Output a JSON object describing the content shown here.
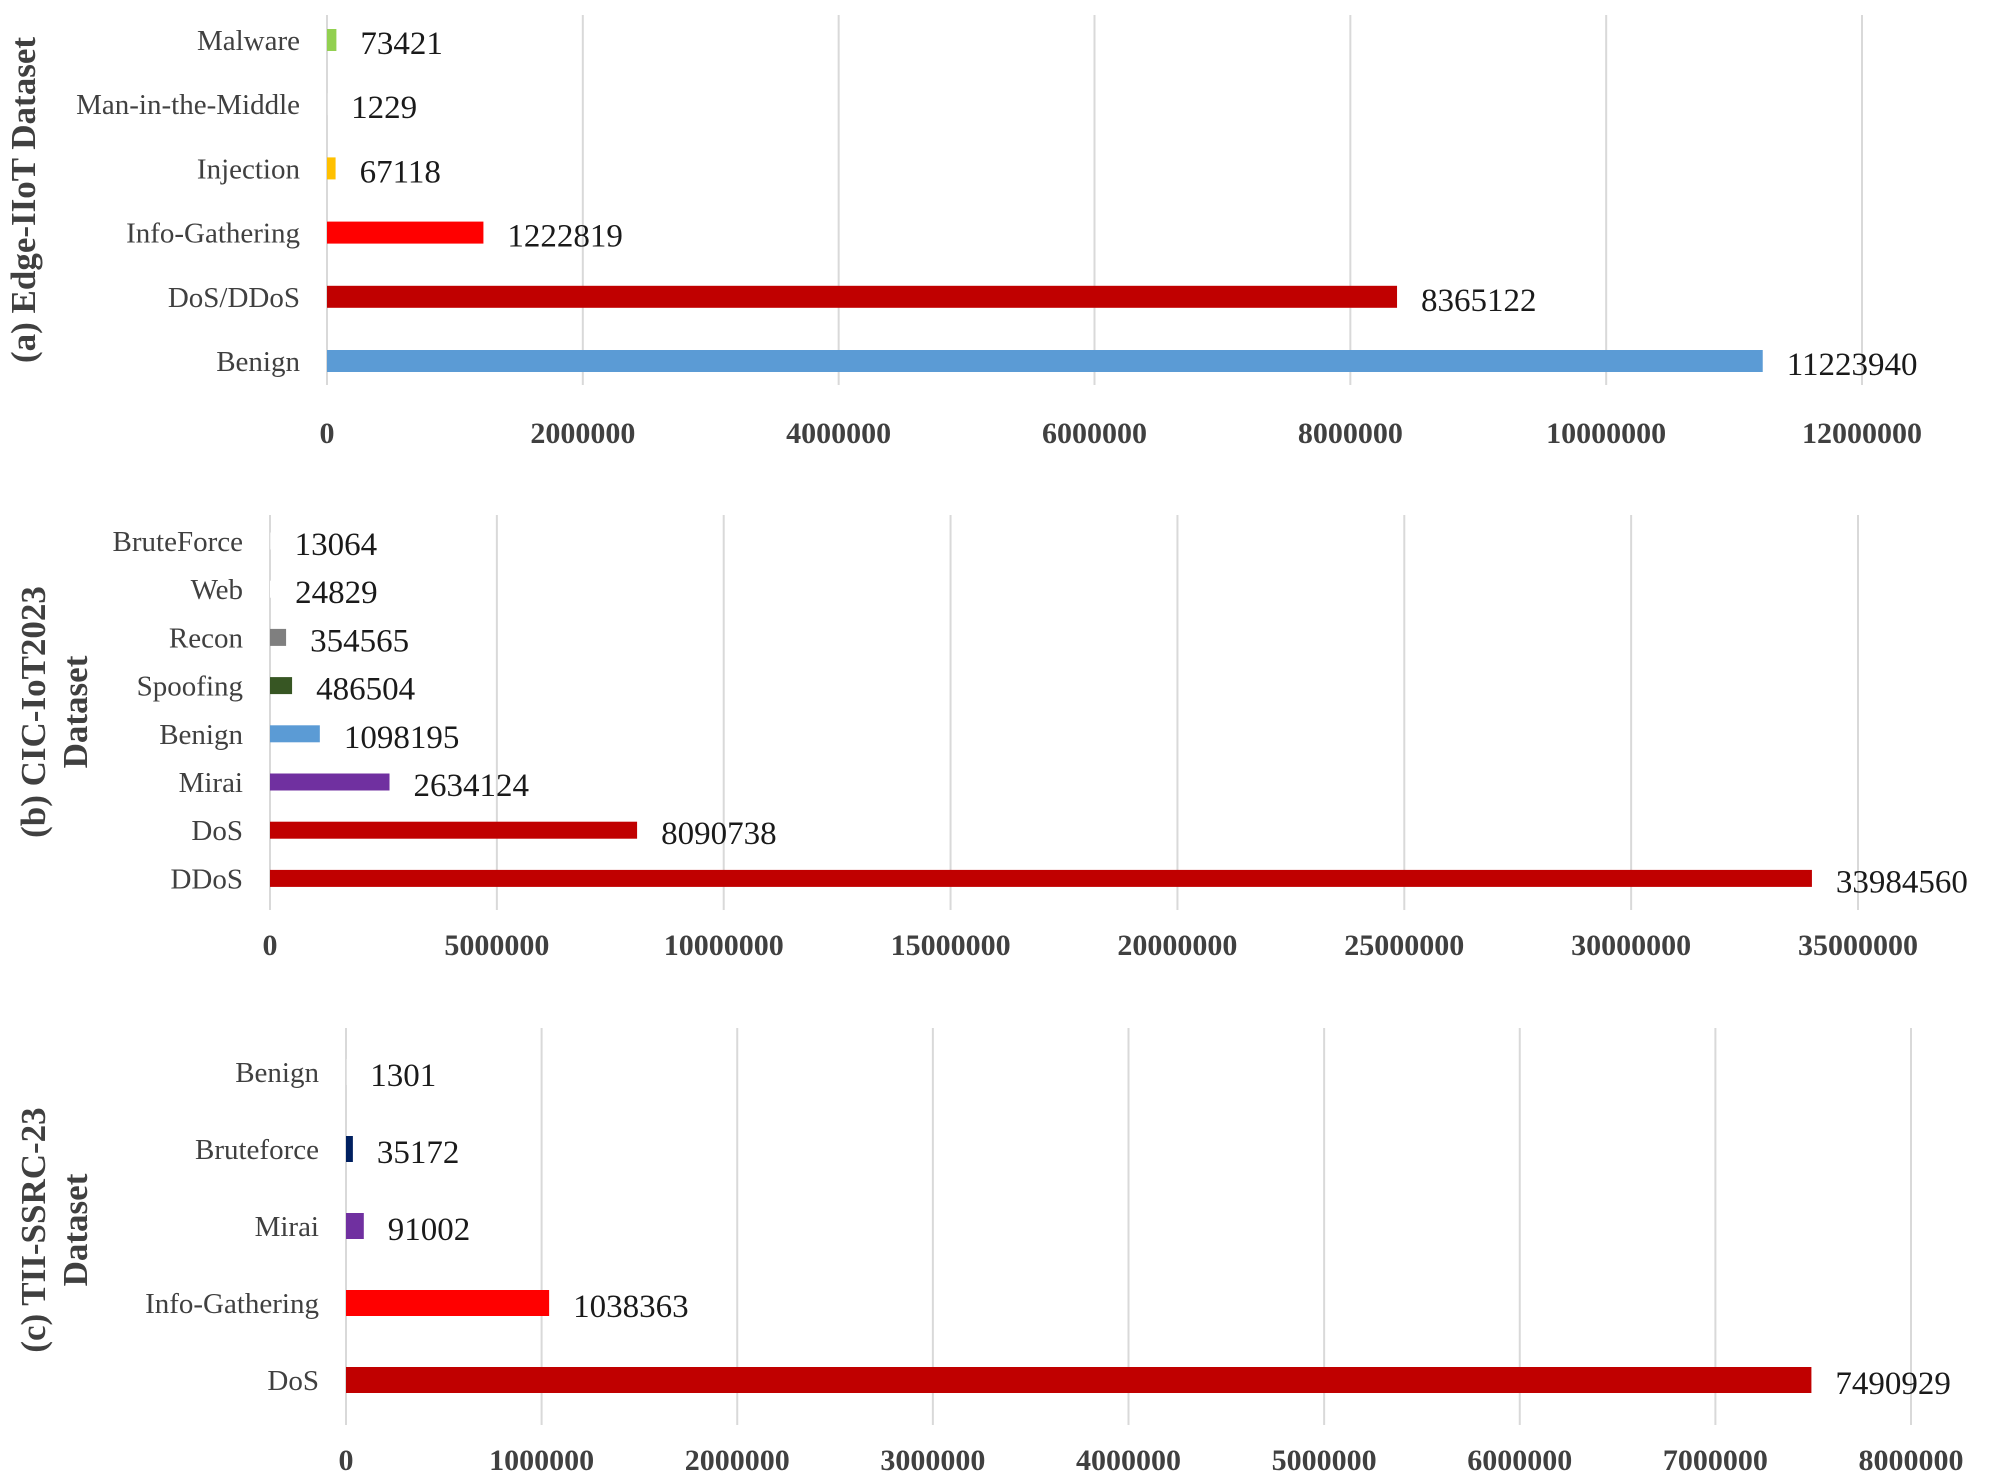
{
  "chart_data": [
    {
      "type": "bar",
      "orientation": "horizontal",
      "title": "(a) Edge-IIoT Dataset",
      "categories": [
        "Malware",
        "Man-in-the-Middle",
        "Injection",
        "Info-Gathering",
        "DoS/DDoS",
        "Benign"
      ],
      "values": [
        73421,
        1229,
        67118,
        1222819,
        8365122,
        11223940
      ],
      "data_labels": [
        "73421",
        "1229",
        "67118",
        "1222819",
        "8365122",
        "11223940"
      ],
      "colors": [
        "#92d050",
        "#ffffff",
        "#ffc000",
        "#ff0000",
        "#c00000",
        "#5b9bd5"
      ],
      "xlim": [
        0,
        12000000
      ],
      "xticks": [
        "0",
        "2000000",
        "4000000",
        "6000000",
        "8000000",
        "10000000",
        "12000000"
      ],
      "grid": true
    },
    {
      "type": "bar",
      "orientation": "horizontal",
      "title": [
        "(b) CIC-IoT2023",
        "Dataset"
      ],
      "categories": [
        "BruteForce",
        "Web",
        "Recon",
        "Spoofing",
        "Benign",
        "Mirai",
        "DoS",
        "DDoS"
      ],
      "values": [
        13064,
        24829,
        354565,
        486504,
        1098195,
        2634124,
        8090738,
        33984560
      ],
      "data_labels": [
        "13064",
        "24829",
        "354565",
        "486504",
        "1098195",
        "2634124",
        "8090738",
        "33984560"
      ],
      "colors": [
        "#ffffff",
        "#ffffff",
        "#7f7f7f",
        "#375623",
        "#5b9bd5",
        "#7030a0",
        "#c00000",
        "#c00000"
      ],
      "xlim": [
        0,
        35000000
      ],
      "xticks": [
        "0",
        "5000000",
        "10000000",
        "15000000",
        "20000000",
        "25000000",
        "30000000",
        "35000000"
      ],
      "grid": true
    },
    {
      "type": "bar",
      "orientation": "horizontal",
      "title": [
        "(c) TII-SSRC-23",
        "Dataset"
      ],
      "categories": [
        "Benign",
        "Bruteforce",
        "Mirai",
        "Info-Gathering",
        "DoS"
      ],
      "values": [
        1301,
        35172,
        91002,
        1038363,
        7490929
      ],
      "data_labels": [
        "1301",
        "35172",
        "91002",
        "1038363",
        "7490929"
      ],
      "colors": [
        "#ffffff",
        "#002060",
        "#7030a0",
        "#ff0000",
        "#c00000"
      ],
      "xlim": [
        0,
        8000000
      ],
      "xticks": [
        "0",
        "1000000",
        "2000000",
        "3000000",
        "4000000",
        "5000000",
        "6000000",
        "7000000",
        "8000000"
      ],
      "grid": true
    }
  ]
}
